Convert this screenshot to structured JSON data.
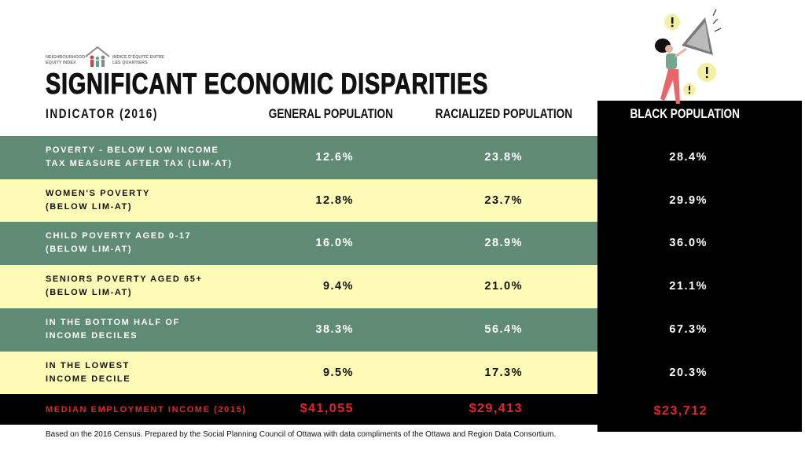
{
  "logo": {
    "english": [
      "NEIGHBOURHOOD",
      "EQUITY INDEX"
    ],
    "french": [
      "INDICE D'ÉQUITÉ ENTRE",
      "LES QUARTIERS"
    ]
  },
  "title": "SIGNIFICANT ECONOMIC DISPARITIES",
  "table": {
    "headers": [
      "INDICATOR (2016)",
      "GENERAL POPULATION",
      "RACIALIZED POPULATION",
      "BLACK POPULATION"
    ],
    "rows": [
      {
        "indicator": [
          "POVERTY - BELOW LOW INCOME",
          "TAX MEASURE AFTER TAX (LIM-AT)"
        ],
        "values": [
          "12.6%",
          "23.8%",
          "28.4%"
        ]
      },
      {
        "indicator": [
          "WOMEN'S POVERTY",
          "(BELOW LIM-AT)"
        ],
        "values": [
          "12.8%",
          "23.7%",
          "29.9%"
        ]
      },
      {
        "indicator": [
          "CHILD POVERTY AGED 0-17",
          "(BELOW LIM-AT)"
        ],
        "values": [
          "16.0%",
          "28.9%",
          "36.0%"
        ]
      },
      {
        "indicator": [
          "SENIORS POVERTY AGED 65+",
          "(BELOW LIM-AT)"
        ],
        "values": [
          "9.4%",
          "21.0%",
          "21.1%"
        ]
      },
      {
        "indicator": [
          "IN THE BOTTOM HALF OF",
          "INCOME DECILES"
        ],
        "values": [
          "38.3%",
          "56.4%",
          "67.3%"
        ]
      },
      {
        "indicator": [
          "IN THE LOWEST",
          "INCOME DECILE"
        ],
        "values": [
          "9.5%",
          "17.3%",
          "20.3%"
        ]
      }
    ],
    "footer_row": {
      "indicator": "MEDIAN EMPLOYMENT INCOME (2015)",
      "values": [
        "$41,055",
        "$29,413",
        "$23,712"
      ]
    }
  },
  "footnote": "Based on the 2016 Census. Prepared by the Social Planning Council of Ottawa with data compliments of the Ottawa and Region Data Consortium."
}
